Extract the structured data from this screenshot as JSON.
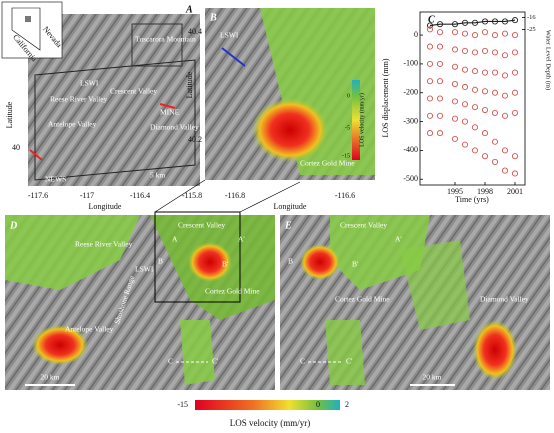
{
  "figure": {
    "a": {
      "letter": "A",
      "inset": [
        "Nevada",
        "California"
      ],
      "labels": [
        "Tuscarora Mountain",
        "Reese River Valley",
        "Crescent Valley",
        "Antelope Valley",
        "Diamond Valley",
        "LSWI",
        "MINE",
        "NEWS",
        "5 km"
      ],
      "xticks": [
        "-117.6",
        "-117",
        "-116.4",
        "-115.8"
      ],
      "yticks": [
        "40"
      ],
      "xlabel": "Longitude",
      "ylabel": "Latitude"
    },
    "b": {
      "letter": "B",
      "labels": [
        "LSWI",
        "Cortez Gold Mine"
      ],
      "xticks": [
        "-116.8",
        "-116.6"
      ],
      "yticks": [
        "40.4",
        "40.2"
      ],
      "xlabel": "Longitude",
      "ylabel": "Latitude",
      "colorbar_label": "LOS velocity (mm/yr)",
      "colorbar_ticks": [
        "0",
        "-5",
        "-15"
      ]
    },
    "d": {
      "letter": "D",
      "labels": [
        "Crescent Valley",
        "Reese River Valley",
        "LSWI",
        "Shoshone Range",
        "Cortez Gold Mine",
        "Antelope Valley",
        "20 km",
        "A",
        "A'",
        "B",
        "B'",
        "C",
        "C'"
      ]
    },
    "e": {
      "letter": "E",
      "labels": [
        "Crescent Valley",
        "A'",
        "B",
        "B'",
        "Cortez Gold Mine",
        "Diamond Valley",
        "20 km",
        "C",
        "C'"
      ]
    },
    "colorbar": {
      "ticks": [
        "-15",
        "0",
        "2"
      ],
      "label": "LOS velocity (mm/yr)"
    }
  },
  "chart_data": {
    "type": "scatter",
    "letter": "C",
    "xlabel": "Time (yrs)",
    "ylabel": "LOS displacement (mm)",
    "y2label": "Water Level Depth (m)",
    "x": [
      1992.5,
      1993.5,
      1995,
      1996,
      1997,
      1998,
      1999,
      2000,
      2001
    ],
    "xlim": [
      1991.5,
      2002
    ],
    "xticks": [
      1995,
      1998,
      2001
    ],
    "ylim": [
      -520,
      80
    ],
    "yticks": [
      0,
      -100,
      -200,
      -300,
      -400,
      -500
    ],
    "y2lim": [
      -140,
      -12
    ],
    "y2ticks": [
      -16,
      -25
    ],
    "series": [
      {
        "color": "#222222",
        "axis": "y2",
        "line": true,
        "values": [
          -22,
          -21,
          -21,
          -20,
          -20,
          -19,
          -19,
          -19,
          -18
        ]
      },
      {
        "color": "#d9534f",
        "values": [
          20,
          10,
          10,
          5,
          0,
          10,
          0,
          5,
          0
        ]
      },
      {
        "color": "#d9534f",
        "values": [
          -40,
          -40,
          -50,
          -55,
          -60,
          -55,
          -60,
          -70,
          -60
        ]
      },
      {
        "color": "#d9534f",
        "values": [
          -100,
          -100,
          -110,
          -120,
          -125,
          -130,
          -130,
          -140,
          -130
        ]
      },
      {
        "color": "#d9534f",
        "values": [
          -160,
          -160,
          -170,
          -180,
          -190,
          -195,
          -200,
          -210,
          -200
        ]
      },
      {
        "color": "#d9534f",
        "values": [
          -220,
          -220,
          -230,
          -240,
          -250,
          -260,
          -270,
          -280,
          -270
        ]
      },
      {
        "color": "#d9534f",
        "values": [
          -280,
          -280,
          -290,
          -300,
          -320,
          -340,
          -370,
          -400,
          -420
        ]
      },
      {
        "color": "#d9534f",
        "values": [
          -340,
          -340,
          -360,
          -380,
          -400,
          -420,
          -440,
          -470,
          -480
        ]
      }
    ]
  }
}
